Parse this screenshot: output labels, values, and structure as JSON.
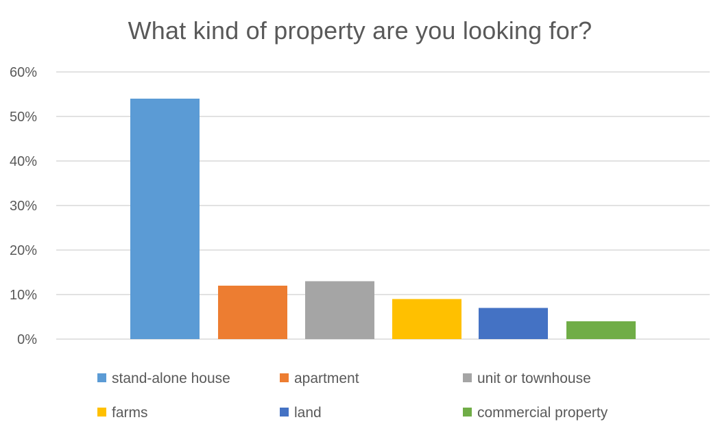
{
  "chart_data": {
    "type": "bar",
    "title": "What kind of property are you looking for?",
    "xlabel": "",
    "ylabel": "",
    "ylim": [
      0,
      0.6
    ],
    "y_ticks": [
      0,
      0.1,
      0.2,
      0.3,
      0.4,
      0.5,
      0.6
    ],
    "y_tick_labels": [
      "0%",
      "10%",
      "20%",
      "30%",
      "40%",
      "50%",
      "60%"
    ],
    "grid": true,
    "legend_position": "bottom",
    "series": [
      {
        "name": "stand-alone house",
        "value": 0.54,
        "color": "#5B9BD5"
      },
      {
        "name": "apartment",
        "value": 0.12,
        "color": "#ED7D31"
      },
      {
        "name": "unit or townhouse",
        "value": 0.13,
        "color": "#A5A5A5"
      },
      {
        "name": "farms",
        "value": 0.09,
        "color": "#FFC000"
      },
      {
        "name": "land",
        "value": 0.07,
        "color": "#4472C4"
      },
      {
        "name": "commercial property",
        "value": 0.04,
        "color": "#70AD47"
      }
    ]
  }
}
